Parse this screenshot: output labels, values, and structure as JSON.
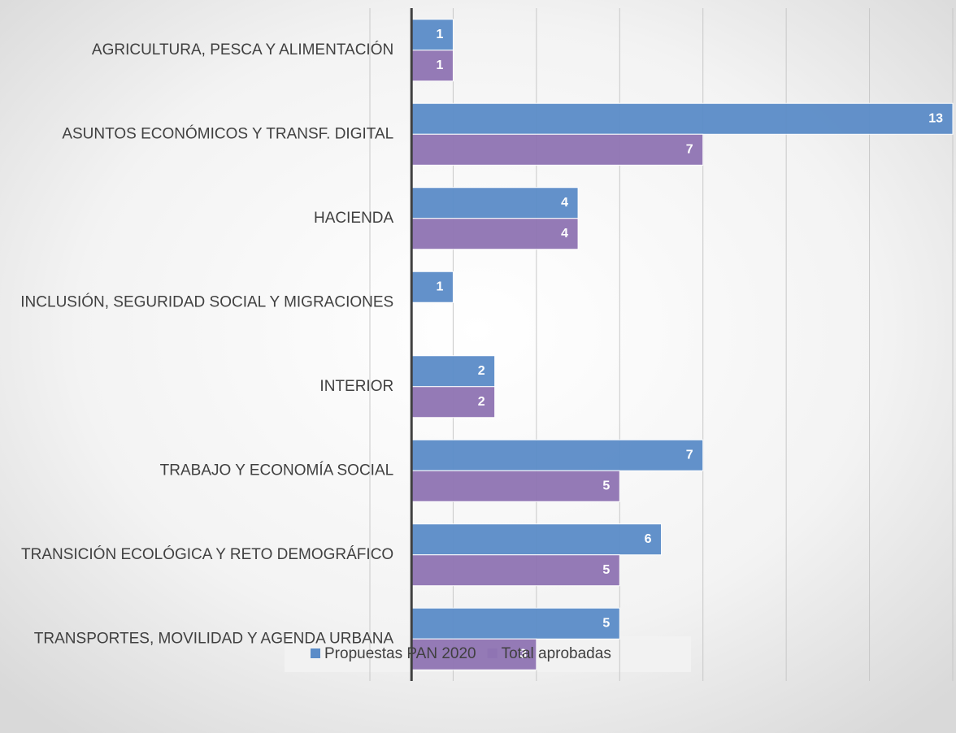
{
  "chart_data": {
    "type": "hbar",
    "categories": [
      "AGRICULTURA, PESCA Y ALIMENTACIÓN",
      "ASUNTOS ECONÓMICOS Y TRANSF. DIGITAL",
      "HACIENDA",
      "INCLUSIÓN, SEGURIDAD SOCIAL Y MIGRACIONES",
      "INTERIOR",
      "TRABAJO Y ECONOMÍA SOCIAL",
      "TRANSICIÓN ECOLÓGICA Y RETO DEMOGRÁFICO",
      "TRANSPORTES, MOVILIDAD Y AGENDA URBANA"
    ],
    "series": [
      {
        "name": "Propuestas PAN 2020",
        "color": "#5b8cc8",
        "values": [
          1,
          13,
          4,
          1,
          2,
          7,
          6,
          5
        ]
      },
      {
        "name": "Total aprobadas",
        "color": "#8f74b3",
        "values": [
          1,
          7,
          4,
          null,
          2,
          5,
          5,
          3
        ]
      }
    ],
    "xlim": [
      -1,
      13
    ],
    "xticks": [
      -1,
      1,
      3,
      5,
      7,
      9,
      11,
      13
    ],
    "grid": true,
    "legend": "bottom"
  }
}
